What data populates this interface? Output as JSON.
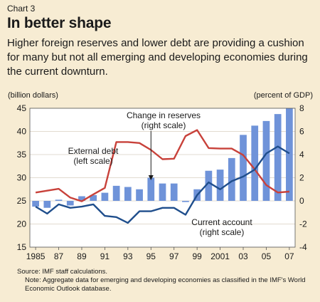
{
  "header": {
    "chart_number": "Chart 3",
    "title": "In better shape",
    "subtitle": "Higher foreign reserves and lower debt are providing a cushion for many but not all emerging and developing economies during the current downturn."
  },
  "footer": {
    "source": "Source: IMF staff calculations.",
    "note": "Note: Aggregate data for emerging and developing economies as classified in the IMF's World Economic Outlook database."
  },
  "chart_data": {
    "type": "bar",
    "years": [
      1985,
      1986,
      1987,
      1988,
      1989,
      1990,
      1991,
      1992,
      1993,
      1994,
      1995,
      1996,
      1997,
      1998,
      1999,
      2000,
      2001,
      2002,
      2003,
      2004,
      2005,
      2006,
      2007
    ],
    "xtick_labels": [
      "1985",
      "87",
      "89",
      "91",
      "93",
      "95",
      "97",
      "99",
      "2001",
      "03",
      "05",
      "07"
    ],
    "left_axis": {
      "label": "(billion dollars)",
      "range": [
        15,
        45
      ],
      "ticks": [
        15,
        20,
        25,
        30,
        35,
        40,
        45
      ]
    },
    "right_axis": {
      "label": "(percent of GDP)",
      "range": [
        -4,
        8
      ],
      "ticks": [
        -4,
        -2,
        0,
        2,
        4,
        6,
        8
      ]
    },
    "series": [
      {
        "name": "Change in reserves",
        "axis": "right",
        "kind": "bar",
        "color": "#6f93d9",
        "values": [
          -0.5,
          -0.6,
          0.1,
          -0.4,
          0.4,
          0.5,
          0.7,
          1.3,
          1.2,
          1.0,
          2.0,
          1.5,
          1.5,
          -0.1,
          1.0,
          2.6,
          2.7,
          3.7,
          5.7,
          6.5,
          6.9,
          7.5,
          9.0
        ]
      },
      {
        "name": "External debt",
        "axis": "left",
        "kind": "line",
        "color": "#c8413a",
        "values": [
          26.8,
          27.2,
          27.6,
          25.7,
          24.9,
          26.4,
          27.8,
          37.7,
          37.7,
          37.5,
          36.0,
          34.0,
          34.1,
          39.0,
          40.3,
          36.4,
          36.3,
          36.3,
          34.9,
          31.8,
          28.4,
          26.8,
          27.0
        ]
      },
      {
        "name": "Current account",
        "axis": "right",
        "kind": "line",
        "color": "#1f4e8c",
        "values": [
          -0.5,
          -1.1,
          -0.3,
          -0.6,
          -0.5,
          -0.3,
          -1.3,
          -1.4,
          -1.9,
          -0.9,
          -0.9,
          -0.6,
          -0.6,
          -1.2,
          0.5,
          1.6,
          1.0,
          1.7,
          2.1,
          2.7,
          4.1,
          4.7,
          4.1
        ]
      }
    ],
    "annotations": [
      {
        "text": "Change in reserves",
        "text2": "(right scale)"
      },
      {
        "text": "External debt",
        "text2": "(left scale)"
      },
      {
        "text": "Current account",
        "text2": "(right scale)"
      }
    ],
    "background": "#ffffff",
    "grid": true
  }
}
